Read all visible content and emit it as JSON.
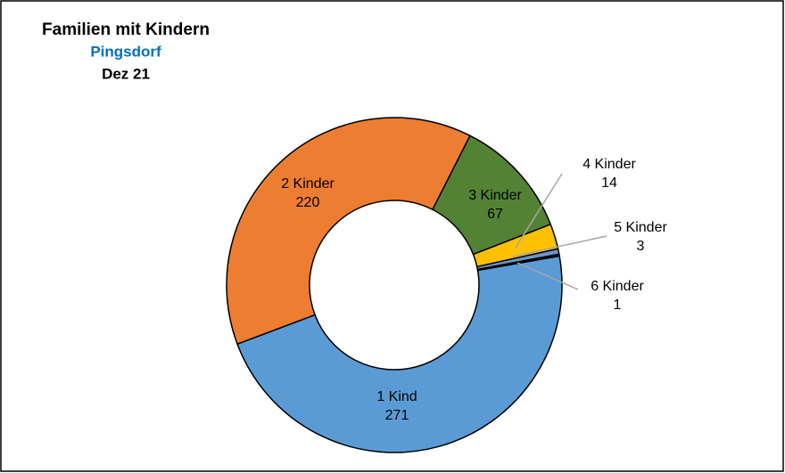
{
  "chart_data": {
    "type": "donut",
    "title": "Familien mit Kindern",
    "subtitle": "Pingsdorf",
    "date": "Dez 21",
    "categories": [
      "1 Kind",
      "2 Kinder",
      "3 Kinder",
      "4 Kinder",
      "5 Kinder",
      "6 Kinder"
    ],
    "values": [
      271,
      220,
      67,
      14,
      3,
      1
    ],
    "colors": [
      "#5b9bd5",
      "#ed7d31",
      "#548235",
      "#ffc000",
      "#6f93c8",
      "#203864"
    ]
  }
}
